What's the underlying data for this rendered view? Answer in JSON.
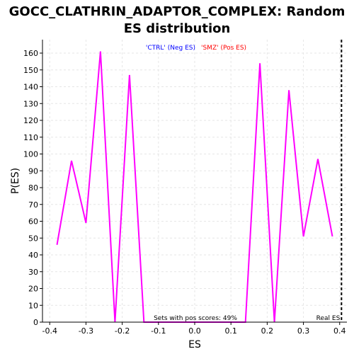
{
  "chart_data": {
    "type": "line",
    "title_lines": [
      "GOCC_CLATHRIN_ADAPTOR_COMPLEX: Random",
      "ES distribution"
    ],
    "xlabel": "ES",
    "ylabel": "P(ES)",
    "xlim": [
      -0.42,
      0.42
    ],
    "ylim": [
      0,
      168
    ],
    "xticks": [
      -0.4,
      -0.3,
      -0.2,
      -0.1,
      0.0,
      0.1,
      0.2,
      0.3,
      0.4
    ],
    "xtick_labels": [
      "-0.4",
      "-0.3",
      "-0.2",
      "-0.1",
      "0.0",
      "0.1",
      "0.2",
      "0.3",
      "0.4"
    ],
    "yticks": [
      0,
      10,
      20,
      30,
      40,
      50,
      60,
      70,
      80,
      90,
      100,
      110,
      120,
      130,
      140,
      150,
      160
    ],
    "grid": true,
    "legend": {
      "placement": "top-center",
      "entries": [
        {
          "label": "'CTRL' (Neg ES)",
          "color": "#0000ff"
        },
        {
          "label": "'SMZ' (Pos ES)",
          "color": "#ff0000"
        }
      ]
    },
    "series": [
      {
        "color": "#ff00ff",
        "points": [
          [
            -0.38,
            46
          ],
          [
            -0.34,
            96
          ],
          [
            -0.3,
            59
          ],
          [
            -0.26,
            161
          ],
          [
            -0.22,
            0
          ],
          [
            -0.18,
            147
          ],
          [
            -0.14,
            0
          ],
          [
            -0.1,
            0
          ],
          [
            -0.06,
            0
          ],
          [
            -0.02,
            0
          ],
          [
            0.02,
            0
          ],
          [
            0.06,
            0
          ],
          [
            0.1,
            0
          ],
          [
            0.14,
            0
          ],
          [
            0.18,
            154
          ],
          [
            0.22,
            0
          ],
          [
            0.26,
            138
          ],
          [
            0.3,
            51
          ],
          [
            0.34,
            97
          ],
          [
            0.38,
            51
          ]
        ]
      }
    ],
    "real_es": {
      "value": 0.405,
      "label": "Real ES",
      "style": "dashed",
      "color": "#000000"
    },
    "annotation": "Sets with pos scores: 49%"
  },
  "colors": {
    "background": "#ffffff",
    "plot_background": "#ffffff",
    "grid": "#e6e6e6",
    "axis": "#000000"
  }
}
